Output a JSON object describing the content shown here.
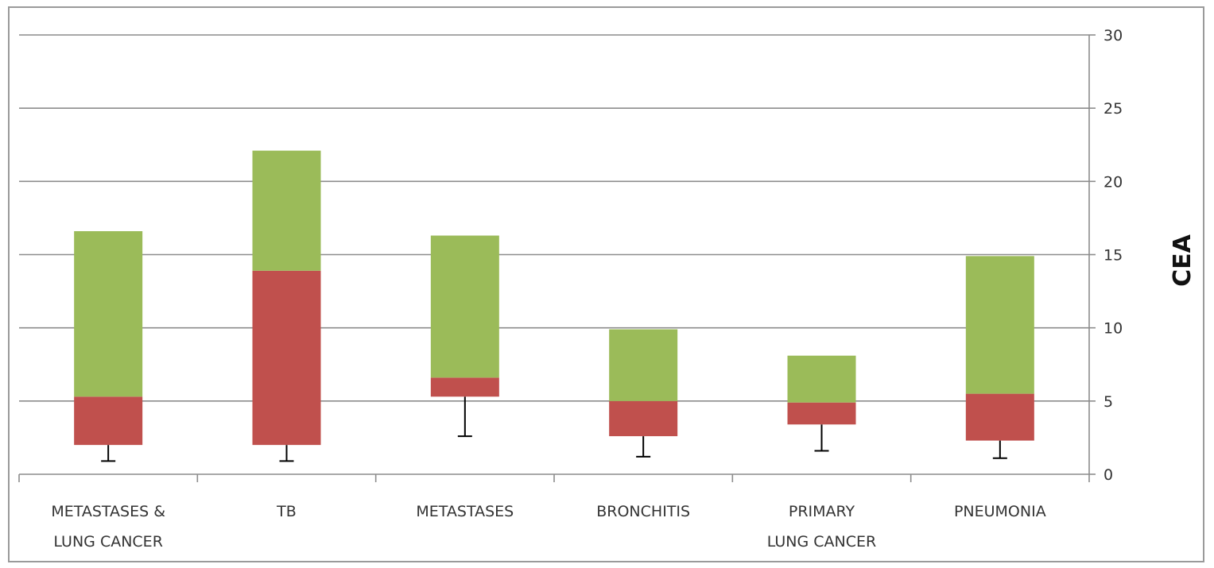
{
  "chart_data": {
    "type": "bar",
    "title": "",
    "xlabel": "",
    "ylabel": "CEA",
    "ylim": [
      0,
      30
    ],
    "y_ticks": [
      0,
      5,
      10,
      15,
      20,
      25,
      30
    ],
    "y_axis_side": "right",
    "grid": true,
    "legend": "none",
    "categories": [
      [
        "METASTASES &",
        "LUNG CANCER"
      ],
      [
        "TB"
      ],
      [
        "METASTASES"
      ],
      [
        "BRONCHITIS"
      ],
      [
        "PRIMARY",
        "LUNG CANCER"
      ],
      [
        "PNEUMONIA"
      ]
    ],
    "boxes": [
      {
        "low_whisker": 0.9,
        "q1": 2.0,
        "median": 5.3,
        "q3": 16.6
      },
      {
        "low_whisker": 0.9,
        "q1": 2.0,
        "median": 13.9,
        "q3": 22.1
      },
      {
        "low_whisker": 2.6,
        "q1": 5.3,
        "median": 6.6,
        "q3": 16.3
      },
      {
        "low_whisker": 1.2,
        "q1": 2.6,
        "median": 5.0,
        "q3": 9.9
      },
      {
        "low_whisker": 1.6,
        "q1": 3.4,
        "median": 4.9,
        "q3": 8.1
      },
      {
        "low_whisker": 1.1,
        "q1": 2.3,
        "median": 5.5,
        "q3": 14.9
      }
    ],
    "colors": {
      "lower_segment": "#c0504d",
      "upper_segment": "#9bbb59",
      "grid": "#8c8c8c",
      "axis": "#8c8c8c",
      "whisker": "#000000"
    }
  }
}
